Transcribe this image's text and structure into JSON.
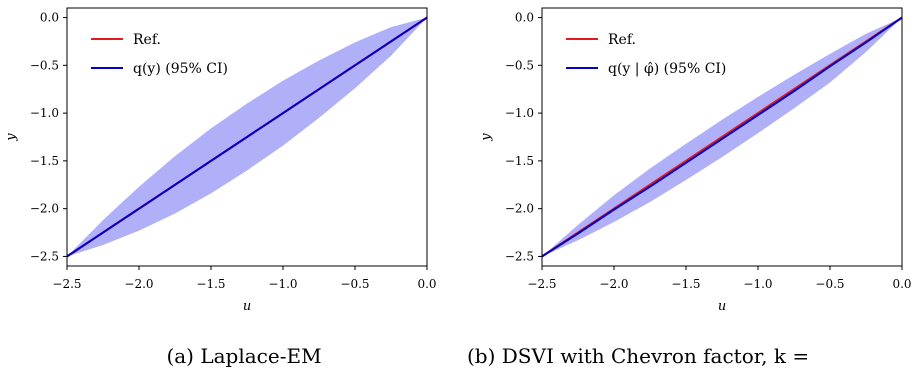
{
  "chart_data": [
    {
      "type": "line",
      "caption": "(a) Laplace-EM",
      "xlabel": "u",
      "ylabel": "y",
      "xlim": [
        -2.5,
        0.0
      ],
      "ylim": [
        -2.6,
        0.1
      ],
      "xticks": [
        -2.5,
        -2.0,
        -1.5,
        -1.0,
        -0.5,
        0.0
      ],
      "xtick_labels": [
        "−2.5",
        "−2.0",
        "−1.5",
        "−1.0",
        "−0.5",
        "0.0"
      ],
      "yticks": [
        0.0,
        -0.5,
        -1.0,
        -1.5,
        -2.0,
        -2.5
      ],
      "ytick_labels": [
        "0.0",
        "−0.5",
        "−1.0",
        "−1.5",
        "−2.0",
        "−2.5"
      ],
      "legend_position": "upper-left",
      "grid": false,
      "series": [
        {
          "name": "Ref.",
          "color": "#e41a1c",
          "x": [
            -2.5,
            -2.0,
            -1.5,
            -1.0,
            -0.5,
            0.0
          ],
          "y": [
            -2.5,
            -2.0,
            -1.5,
            -1.0,
            -0.5,
            0.0
          ]
        },
        {
          "name": "q(y) (95% CI)",
          "color": "#0000cc",
          "band_color": "#b0b0f8",
          "x": [
            -2.5,
            -2.25,
            -2.0,
            -1.75,
            -1.5,
            -1.25,
            -1.0,
            -0.75,
            -0.5,
            -0.25,
            0.0
          ],
          "y": [
            -2.5,
            -2.25,
            -2.0,
            -1.75,
            -1.5,
            -1.25,
            -1.0,
            -0.75,
            -0.5,
            -0.25,
            0.0
          ],
          "lower": [
            -2.5,
            -2.38,
            -2.23,
            -2.05,
            -1.84,
            -1.6,
            -1.34,
            -1.05,
            -0.74,
            -0.4,
            0.0
          ],
          "upper": [
            -2.5,
            -2.12,
            -1.77,
            -1.45,
            -1.16,
            -0.9,
            -0.66,
            -0.45,
            -0.26,
            -0.1,
            0.0
          ]
        }
      ]
    },
    {
      "type": "line",
      "caption": "(b) DSVI with Chevron factor, k =",
      "xlabel": "u",
      "ylabel": "y",
      "xlim": [
        -2.5,
        0.0
      ],
      "ylim": [
        -2.6,
        0.1
      ],
      "xticks": [
        -2.5,
        -2.0,
        -1.5,
        -1.0,
        -0.5,
        0.0
      ],
      "xtick_labels": [
        "−2.5",
        "−2.0",
        "−1.5",
        "−1.0",
        "−0.5",
        "0.0"
      ],
      "yticks": [
        0.0,
        -0.5,
        -1.0,
        -1.5,
        -2.0,
        -2.5
      ],
      "ytick_labels": [
        "0.0",
        "−0.5",
        "−1.0",
        "−1.5",
        "−2.0",
        "−2.5"
      ],
      "legend_position": "upper-left",
      "grid": false,
      "series": [
        {
          "name": "Ref.",
          "color": "#e41a1c",
          "x": [
            -2.5,
            -2.0,
            -1.5,
            -1.0,
            -0.5,
            0.0
          ],
          "y": [
            -2.5,
            -2.0,
            -1.5,
            -1.0,
            -0.5,
            0.0
          ]
        },
        {
          "name": "q(y | φ̂) (95% CI)",
          "color": "#0000cc",
          "band_color": "#b0b0f8",
          "x": [
            -2.5,
            -2.25,
            -2.0,
            -1.75,
            -1.5,
            -1.25,
            -1.0,
            -0.75,
            -0.5,
            -0.25,
            0.0
          ],
          "y": [
            -2.5,
            -2.26,
            -2.01,
            -1.77,
            -1.52,
            -1.27,
            -1.02,
            -0.77,
            -0.51,
            -0.26,
            0.0
          ],
          "lower": [
            -2.5,
            -2.33,
            -2.14,
            -1.93,
            -1.7,
            -1.46,
            -1.21,
            -0.95,
            -0.68,
            -0.36,
            0.0
          ],
          "upper": [
            -2.5,
            -2.17,
            -1.86,
            -1.58,
            -1.32,
            -1.07,
            -0.83,
            -0.6,
            -0.38,
            -0.17,
            0.0
          ]
        }
      ]
    }
  ]
}
